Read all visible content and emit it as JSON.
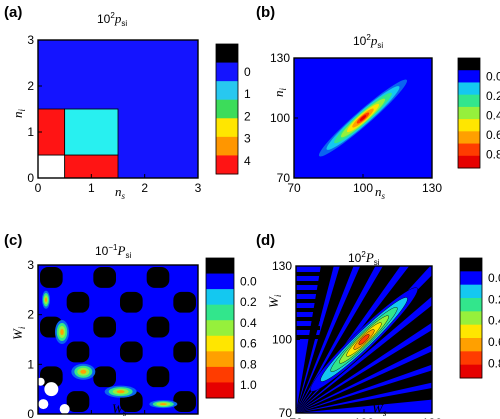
{
  "colors": {
    "scale_c4": [
      "#ffffff",
      "#1414ff",
      "#28c8f0",
      "#3cdc5a",
      "#ffe600",
      "#ff9600",
      "#ff1414",
      "#000000"
    ],
    "heat": [
      "#0000ff",
      "#0a64f0",
      "#14c8f0",
      "#32e68c",
      "#96f03c",
      "#ffe600",
      "#ffa000",
      "#ff3c00",
      "#e60000"
    ]
  },
  "chart_data": [
    {
      "panel_label": "(a)",
      "type": "heatmap",
      "title_base": "10",
      "title_exp": "2",
      "title_var": "p",
      "title_sub": "si",
      "xlabel": "n",
      "xlabel_sub": "s",
      "ylabel": "n",
      "ylabel_sub": "i",
      "xlim": [
        0,
        3
      ],
      "ylim": [
        0,
        3
      ],
      "x_ticks": [
        "0",
        "1",
        "2",
        "3"
      ],
      "y_ticks": [
        "0",
        "1",
        "2",
        "3"
      ],
      "cells": [
        {
          "x": [
            0,
            0.5
          ],
          "y": [
            0,
            0.5
          ],
          "value": -0.5
        },
        {
          "x": [
            0.5,
            1.5
          ],
          "y": [
            0,
            0.5
          ],
          "value": 4
        },
        {
          "x": [
            0,
            0.5
          ],
          "y": [
            0.5,
            1.5
          ],
          "value": 4
        },
        {
          "x": [
            0.5,
            1.5
          ],
          "y": [
            0.5,
            1.5
          ],
          "value": 1
        }
      ],
      "background_value": 0,
      "colorbar": {
        "ticks": [
          "0",
          "1",
          "2",
          "3",
          "4"
        ],
        "levels": [
          "#000000",
          "#1414ff",
          "#28c8f0",
          "#3cdc5a",
          "#ffe600",
          "#ff9600",
          "#ff1414"
        ]
      }
    },
    {
      "panel_label": "(b)",
      "type": "heatmap",
      "title_base": "10",
      "title_exp": "2",
      "title_var": "p",
      "title_sub": "si",
      "xlabel": "n",
      "xlabel_sub": "s",
      "ylabel": "n",
      "ylabel_sub": "i",
      "xlim": [
        70,
        130
      ],
      "ylim": [
        70,
        130
      ],
      "x_ticks": [
        "70",
        "100",
        "130"
      ],
      "y_ticks": [
        "70",
        "100",
        "130"
      ],
      "peak": {
        "x": 100,
        "y": 100,
        "value": 0.8
      },
      "ridge_slope": 1,
      "colorbar": {
        "ticks": [
          "0.0",
          "0.2",
          "0.4",
          "0.6",
          "0.8"
        ],
        "levels": [
          "#000000",
          "#0000ff",
          "#14c8f0",
          "#32e68c",
          "#96f03c",
          "#ffe600",
          "#ffa000",
          "#ff3c00",
          "#e60000"
        ]
      }
    },
    {
      "panel_label": "(c)",
      "type": "heatmap",
      "title_base": "10",
      "title_exp": "−1",
      "title_var": "P",
      "title_sub": "si",
      "xlabel": "W",
      "xlabel_sub": "s",
      "ylabel": "W",
      "ylabel_sub": "i",
      "xlim": [
        0,
        3
      ],
      "ylim": [
        0,
        3
      ],
      "x_ticks": [
        "0",
        "1",
        "2",
        "3"
      ],
      "y_ticks": [
        "0",
        "1",
        "2",
        "3"
      ],
      "colorbar": {
        "ticks": [
          "0.0",
          "0.2",
          "0.4",
          "0.6",
          "0.8",
          "1.0"
        ],
        "levels": [
          "#000000",
          "#0000ff",
          "#14c8f0",
          "#32e68c",
          "#96f03c",
          "#ffe600",
          "#ffa000",
          "#ff3c00",
          "#e60000"
        ]
      }
    },
    {
      "panel_label": "(d)",
      "type": "heatmap",
      "title_base": "10",
      "title_exp": "2",
      "title_var": "P",
      "title_sub": "si",
      "xlabel": "W",
      "xlabel_sub": "s",
      "ylabel": "W",
      "ylabel_sub": "i",
      "xlim": [
        70,
        130
      ],
      "ylim": [
        70,
        130
      ],
      "x_ticks": [
        "70",
        "100",
        "130"
      ],
      "y_ticks": [
        "70",
        "100",
        "130"
      ],
      "peak": {
        "x": 100,
        "y": 100,
        "value": 0.8
      },
      "colorbar": {
        "ticks": [
          "0.0",
          "0.2",
          "0.4",
          "0.6",
          "0.8"
        ],
        "levels": [
          "#000000",
          "#0000ff",
          "#14c8f0",
          "#32e68c",
          "#96f03c",
          "#ffe600",
          "#ffa000",
          "#ff3c00",
          "#e60000"
        ]
      }
    }
  ]
}
